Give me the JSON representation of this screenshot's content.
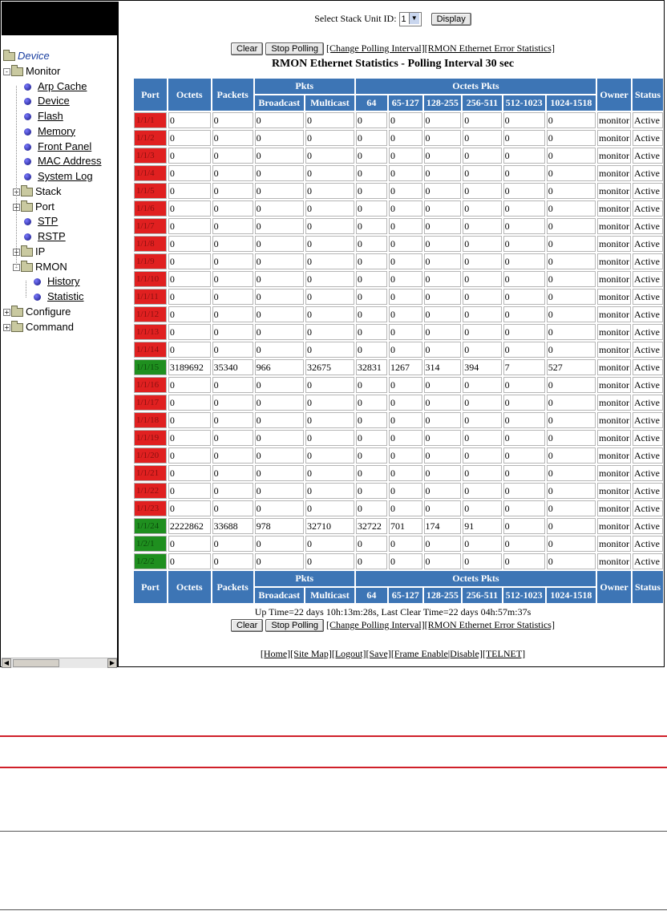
{
  "nav": {
    "root": "Device",
    "items": [
      {
        "label": "Monitor",
        "type": "folder",
        "level": 0,
        "expanded": "-"
      },
      {
        "label": "Arp Cache",
        "type": "leaf",
        "level": 1
      },
      {
        "label": "Device",
        "type": "leaf",
        "level": 1
      },
      {
        "label": "Flash",
        "type": "leaf",
        "level": 1
      },
      {
        "label": "Memory",
        "type": "leaf",
        "level": 1
      },
      {
        "label": "Front Panel",
        "type": "leaf",
        "level": 1
      },
      {
        "label": "MAC Address",
        "type": "leaf",
        "level": 1
      },
      {
        "label": "System Log",
        "type": "leaf",
        "level": 1
      },
      {
        "label": "Stack",
        "type": "folder",
        "level": 1,
        "expanded": "+"
      },
      {
        "label": "Port",
        "type": "folder",
        "level": 1,
        "expanded": "+"
      },
      {
        "label": "STP",
        "type": "leaf",
        "level": 1
      },
      {
        "label": "RSTP",
        "type": "leaf",
        "level": 1
      },
      {
        "label": "IP",
        "type": "folder",
        "level": 1,
        "expanded": "+"
      },
      {
        "label": "RMON",
        "type": "folder",
        "level": 1,
        "expanded": "-"
      },
      {
        "label": "History",
        "type": "leaf",
        "level": 2
      },
      {
        "label": "Statistic",
        "type": "leaf",
        "level": 2
      },
      {
        "label": "Configure",
        "type": "folder",
        "level": 0,
        "expanded": "+"
      },
      {
        "label": "Command",
        "type": "folder",
        "level": 0,
        "expanded": "+"
      }
    ]
  },
  "top": {
    "select_label": "Select Stack Unit ID:",
    "select_value": "1",
    "display_button": "Display",
    "clear_button": "Clear",
    "stop_button": "Stop Polling",
    "link_interval": "[Change Polling Interval]",
    "link_error": "[RMON Ethernet Error Statistics]",
    "title": "RMON Ethernet Statistics - Polling Interval 30 sec"
  },
  "table": {
    "headers": {
      "port": "Port",
      "octets": "Octets",
      "packets": "Packets",
      "pkts": "Pkts",
      "broadcast": "Broadcast",
      "multicast": "Multicast",
      "octets_pkts": "Octets Pkts",
      "b64": "64",
      "b65": "65-127",
      "b128": "128-255",
      "b256": "256-511",
      "b512": "512-1023",
      "b1024": "1024-1518",
      "owner": "Owner",
      "status": "Status"
    },
    "rows": [
      {
        "port": "1/1/1",
        "state": "red",
        "v": [
          "0",
          "0",
          "0",
          "0",
          "0",
          "0",
          "0",
          "0",
          "0",
          "0"
        ],
        "owner": "monitor",
        "status": "Active"
      },
      {
        "port": "1/1/2",
        "state": "red",
        "v": [
          "0",
          "0",
          "0",
          "0",
          "0",
          "0",
          "0",
          "0",
          "0",
          "0"
        ],
        "owner": "monitor",
        "status": "Active"
      },
      {
        "port": "1/1/3",
        "state": "red",
        "v": [
          "0",
          "0",
          "0",
          "0",
          "0",
          "0",
          "0",
          "0",
          "0",
          "0"
        ],
        "owner": "monitor",
        "status": "Active"
      },
      {
        "port": "1/1/4",
        "state": "red",
        "v": [
          "0",
          "0",
          "0",
          "0",
          "0",
          "0",
          "0",
          "0",
          "0",
          "0"
        ],
        "owner": "monitor",
        "status": "Active"
      },
      {
        "port": "1/1/5",
        "state": "red",
        "v": [
          "0",
          "0",
          "0",
          "0",
          "0",
          "0",
          "0",
          "0",
          "0",
          "0"
        ],
        "owner": "monitor",
        "status": "Active"
      },
      {
        "port": "1/1/6",
        "state": "red",
        "v": [
          "0",
          "0",
          "0",
          "0",
          "0",
          "0",
          "0",
          "0",
          "0",
          "0"
        ],
        "owner": "monitor",
        "status": "Active"
      },
      {
        "port": "1/1/7",
        "state": "red",
        "v": [
          "0",
          "0",
          "0",
          "0",
          "0",
          "0",
          "0",
          "0",
          "0",
          "0"
        ],
        "owner": "monitor",
        "status": "Active"
      },
      {
        "port": "1/1/8",
        "state": "red",
        "v": [
          "0",
          "0",
          "0",
          "0",
          "0",
          "0",
          "0",
          "0",
          "0",
          "0"
        ],
        "owner": "monitor",
        "status": "Active"
      },
      {
        "port": "1/1/9",
        "state": "red",
        "v": [
          "0",
          "0",
          "0",
          "0",
          "0",
          "0",
          "0",
          "0",
          "0",
          "0"
        ],
        "owner": "monitor",
        "status": "Active"
      },
      {
        "port": "1/1/10",
        "state": "red",
        "v": [
          "0",
          "0",
          "0",
          "0",
          "0",
          "0",
          "0",
          "0",
          "0",
          "0"
        ],
        "owner": "monitor",
        "status": "Active"
      },
      {
        "port": "1/1/11",
        "state": "red",
        "v": [
          "0",
          "0",
          "0",
          "0",
          "0",
          "0",
          "0",
          "0",
          "0",
          "0"
        ],
        "owner": "monitor",
        "status": "Active"
      },
      {
        "port": "1/1/12",
        "state": "red",
        "v": [
          "0",
          "0",
          "0",
          "0",
          "0",
          "0",
          "0",
          "0",
          "0",
          "0"
        ],
        "owner": "monitor",
        "status": "Active"
      },
      {
        "port": "1/1/13",
        "state": "red",
        "v": [
          "0",
          "0",
          "0",
          "0",
          "0",
          "0",
          "0",
          "0",
          "0",
          "0"
        ],
        "owner": "monitor",
        "status": "Active"
      },
      {
        "port": "1/1/14",
        "state": "red",
        "v": [
          "0",
          "0",
          "0",
          "0",
          "0",
          "0",
          "0",
          "0",
          "0",
          "0"
        ],
        "owner": "monitor",
        "status": "Active"
      },
      {
        "port": "1/1/15",
        "state": "green",
        "v": [
          "3189692",
          "35340",
          "966",
          "32675",
          "32831",
          "1267",
          "314",
          "394",
          "7",
          "527"
        ],
        "owner": "monitor",
        "status": "Active"
      },
      {
        "port": "1/1/16",
        "state": "red",
        "v": [
          "0",
          "0",
          "0",
          "0",
          "0",
          "0",
          "0",
          "0",
          "0",
          "0"
        ],
        "owner": "monitor",
        "status": "Active"
      },
      {
        "port": "1/1/17",
        "state": "red",
        "v": [
          "0",
          "0",
          "0",
          "0",
          "0",
          "0",
          "0",
          "0",
          "0",
          "0"
        ],
        "owner": "monitor",
        "status": "Active"
      },
      {
        "port": "1/1/18",
        "state": "red",
        "v": [
          "0",
          "0",
          "0",
          "0",
          "0",
          "0",
          "0",
          "0",
          "0",
          "0"
        ],
        "owner": "monitor",
        "status": "Active"
      },
      {
        "port": "1/1/19",
        "state": "red",
        "v": [
          "0",
          "0",
          "0",
          "0",
          "0",
          "0",
          "0",
          "0",
          "0",
          "0"
        ],
        "owner": "monitor",
        "status": "Active"
      },
      {
        "port": "1/1/20",
        "state": "red",
        "v": [
          "0",
          "0",
          "0",
          "0",
          "0",
          "0",
          "0",
          "0",
          "0",
          "0"
        ],
        "owner": "monitor",
        "status": "Active"
      },
      {
        "port": "1/1/21",
        "state": "red",
        "v": [
          "0",
          "0",
          "0",
          "0",
          "0",
          "0",
          "0",
          "0",
          "0",
          "0"
        ],
        "owner": "monitor",
        "status": "Active"
      },
      {
        "port": "1/1/22",
        "state": "red",
        "v": [
          "0",
          "0",
          "0",
          "0",
          "0",
          "0",
          "0",
          "0",
          "0",
          "0"
        ],
        "owner": "monitor",
        "status": "Active"
      },
      {
        "port": "1/1/23",
        "state": "red",
        "v": [
          "0",
          "0",
          "0",
          "0",
          "0",
          "0",
          "0",
          "0",
          "0",
          "0"
        ],
        "owner": "monitor",
        "status": "Active"
      },
      {
        "port": "1/1/24",
        "state": "green",
        "v": [
          "2222862",
          "33688",
          "978",
          "32710",
          "32722",
          "701",
          "174",
          "91",
          "0",
          "0"
        ],
        "owner": "monitor",
        "status": "Active"
      },
      {
        "port": "1/2/1",
        "state": "green",
        "v": [
          "0",
          "0",
          "0",
          "0",
          "0",
          "0",
          "0",
          "0",
          "0",
          "0"
        ],
        "owner": "monitor",
        "status": "Active"
      },
      {
        "port": "1/2/2",
        "state": "green",
        "v": [
          "0",
          "0",
          "0",
          "0",
          "0",
          "0",
          "0",
          "0",
          "0",
          "0"
        ],
        "owner": "monitor",
        "status": "Active"
      }
    ]
  },
  "bottom": {
    "uptime": "Up Time=22 days 10h:13m:28s, Last Clear Time=22 days 04h:57m:37s",
    "clear_button": "Clear",
    "stop_button": "Stop Polling",
    "link_interval": "[Change Polling Interval]",
    "link_error": "[RMON Ethernet Error Statistics]",
    "footer_links": [
      "[Home]",
      "[Site Map]",
      "[Logout]",
      "[Save]",
      "[Frame Enable",
      "|Disable]",
      "[TELNET]"
    ]
  },
  "colors": {
    "header_bg": "#3d75b5",
    "port_down": "#e02020",
    "port_up": "#1f8f1f",
    "page_rule": "#d0202a"
  }
}
